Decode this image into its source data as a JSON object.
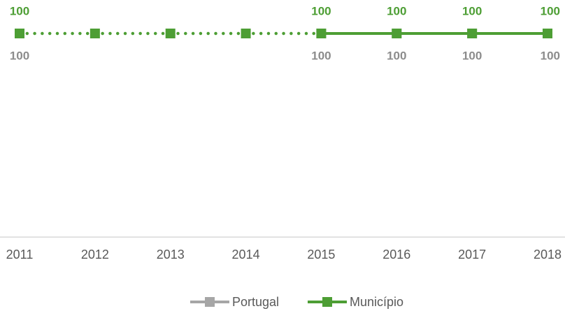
{
  "chart_data": {
    "type": "line",
    "categories": [
      "2011",
      "2012",
      "2013",
      "2014",
      "2015",
      "2016",
      "2017",
      "2018"
    ],
    "series": [
      {
        "name": "Portugal",
        "color": "#a6a6a6",
        "values": [
          100,
          null,
          null,
          null,
          100,
          100,
          100,
          100
        ]
      },
      {
        "name": "Município",
        "color": "#4d9e34",
        "values": [
          100,
          100,
          100,
          100,
          100,
          100,
          100,
          100
        ],
        "value_labels": [
          "100",
          null,
          null,
          null,
          "100",
          "100",
          "100",
          "100"
        ],
        "segment_styles": [
          "dotted",
          "dotted",
          "dotted",
          "dotted",
          "solid",
          "solid",
          "solid"
        ]
      }
    ],
    "ylim": [
      0,
      100
    ]
  }
}
